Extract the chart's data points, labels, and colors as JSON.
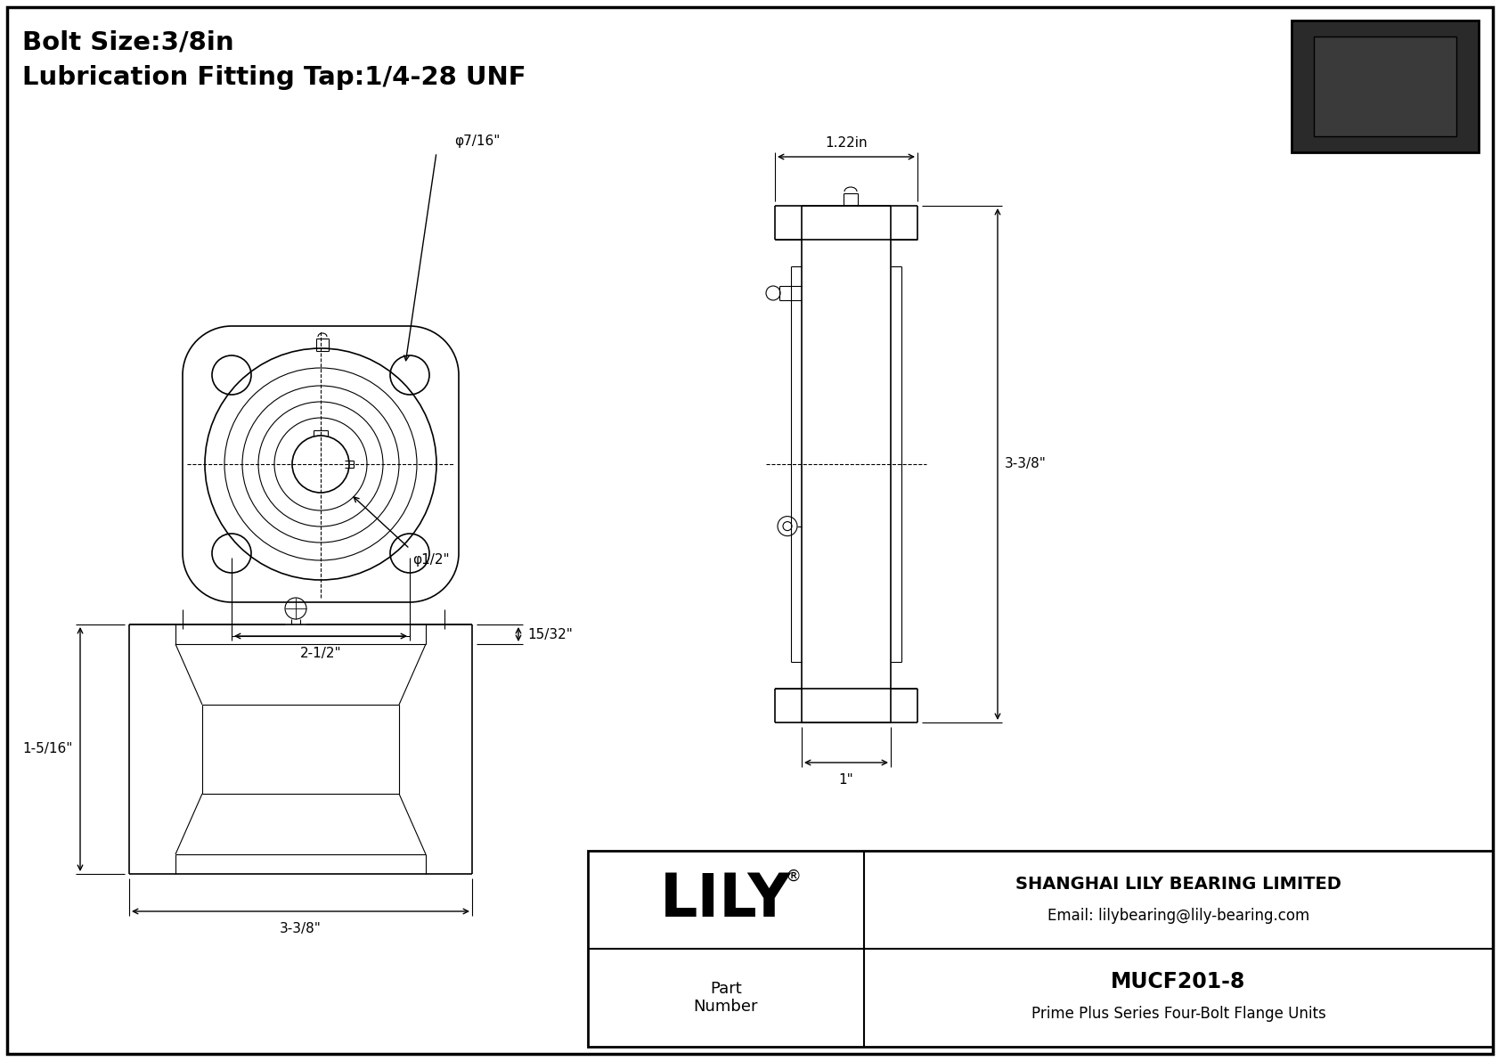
{
  "bg_color": "#ffffff",
  "line_color": "#000000",
  "title_line1": "Bolt Size:3/8in",
  "title_line2": "Lubrication Fitting Tap:1/4-28 UNF",
  "company": "SHANGHAI LILY BEARING LIMITED",
  "email": "Email: lilybearing@lily-bearing.com",
  "part_label": "Part\nNumber",
  "part_number": "MUCF201-8",
  "part_desc": "Prime Plus Series Four-Bolt Flange Units",
  "logo": "LILY",
  "logo_reg": "®",
  "dim_bolt_hole": "φ7/16\"",
  "dim_bore": "φ1/2\"",
  "dim_width": "2-1/2\"",
  "dim_depth": "1.22in",
  "dim_height": "3-3/8\"",
  "dim_base": "1\"",
  "dim_flange_h": "1-5/16\"",
  "dim_flange_w": "3-3/8\"",
  "dim_flange_d": "15/32\""
}
